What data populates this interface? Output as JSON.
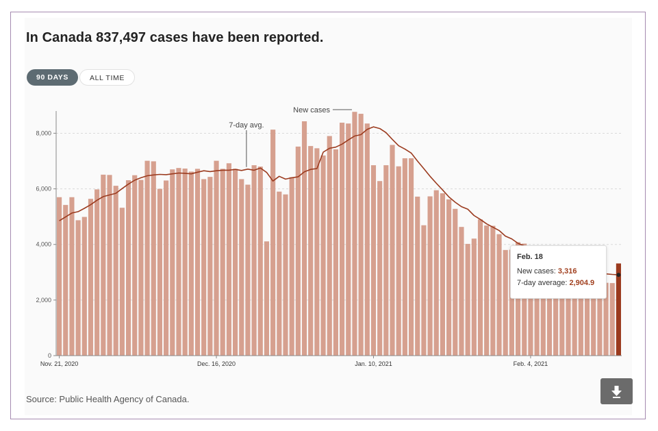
{
  "header": {
    "title": "In Canada 837,497 cases have been reported."
  },
  "toggles": {
    "days90": "90 DAYS",
    "alltime": "ALL TIME"
  },
  "footer": {
    "source": "Source: Public Health Agency of Canada."
  },
  "icons": {
    "download": "download-arrow-icon"
  },
  "colors": {
    "bar": "#d6a08f",
    "bar_highlight": "#9b3a1e",
    "line": "#9b3a1e",
    "accent_text": "#a1401f"
  },
  "tooltip": {
    "date": "Feb. 18",
    "cases_label": "New cases: ",
    "cases_value": "3,316",
    "avg_label": "7-day average: ",
    "avg_value": "2,904.9"
  },
  "chart_data": {
    "type": "bar",
    "annotations": [
      "New cases",
      "7-day avg."
    ],
    "xtick_labels": [
      "Nov. 21, 2020",
      "Dec. 16, 2020",
      "Jan. 10, 2021",
      "Feb. 4, 2021"
    ],
    "xtick_indices": [
      0,
      25,
      50,
      75
    ],
    "ytick_labels": [
      "0",
      "2,000",
      "4,000",
      "6,000",
      "8,000"
    ],
    "yticks": [
      0,
      2000,
      4000,
      6000,
      8000
    ],
    "ylim": [
      0,
      8800
    ],
    "grid": true,
    "highlight_index": 89,
    "series": [
      {
        "type": "bar",
        "values": [
          5700,
          5420,
          5700,
          4870,
          4990,
          5640,
          5980,
          6510,
          6500,
          6110,
          5320,
          6310,
          6490,
          6320,
          7010,
          6990,
          6000,
          6300,
          6700,
          6750,
          6730,
          6620,
          6720,
          6350,
          6430,
          7010,
          6720,
          6920,
          6720,
          6350,
          6150,
          6850,
          6800,
          4110,
          8130,
          5900,
          5800,
          6420,
          7520,
          8430,
          7540,
          7460,
          7200,
          7900,
          7420,
          8380,
          8350,
          8770,
          8700,
          8350,
          6850,
          6280,
          6850,
          7580,
          6810,
          7100,
          7100,
          5720,
          4690,
          5730,
          5950,
          5840,
          5620,
          5280,
          4630,
          4020,
          4210,
          4900,
          4680,
          4670,
          4370,
          3800,
          3810,
          4080,
          4030,
          3600,
          3200,
          3400,
          3020,
          3000,
          3040,
          3100,
          3550,
          3150,
          3050,
          2900,
          2700,
          2620,
          2610,
          3316
        ]
      },
      {
        "type": "line",
        "values": [
          4850,
          4990,
          5130,
          5180,
          5300,
          5430,
          5590,
          5720,
          5780,
          5840,
          6010,
          6170,
          6310,
          6400,
          6470,
          6500,
          6520,
          6510,
          6540,
          6570,
          6560,
          6540,
          6600,
          6650,
          6620,
          6650,
          6670,
          6670,
          6700,
          6660,
          6710,
          6670,
          6750,
          6590,
          6280,
          6450,
          6350,
          6400,
          6430,
          6610,
          6700,
          6730,
          7320,
          7460,
          7500,
          7610,
          7760,
          7900,
          7950,
          8140,
          8230,
          8170,
          8020,
          7780,
          7550,
          7430,
          7290,
          7000,
          6730,
          6450,
          6200,
          5960,
          5710,
          5520,
          5360,
          5270,
          5040,
          4900,
          4740,
          4620,
          4500,
          4300,
          4200,
          4040,
          3950,
          3750,
          3620,
          3500,
          3380,
          3260,
          3200,
          3160,
          3120,
          3070,
          3040,
          3010,
          2970,
          2940,
          2920,
          2905
        ]
      }
    ]
  }
}
